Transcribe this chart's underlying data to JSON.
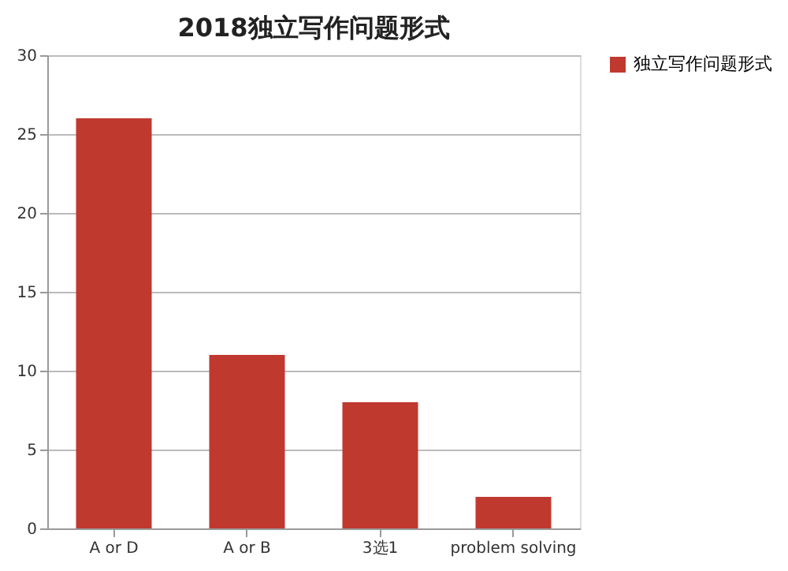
{
  "chart_data": {
    "type": "bar",
    "title": "2018独立写作问题形式",
    "categories": [
      "A or D",
      "A or B",
      "3选1",
      "problem solving"
    ],
    "series": [
      {
        "name": "独立写作问题形式",
        "color": "#c0392f",
        "values": [
          26,
          11,
          8,
          2
        ]
      }
    ],
    "ylim": [
      0,
      30
    ],
    "yticks": [
      0,
      5,
      10,
      15,
      20,
      25,
      30
    ],
    "grid": "y",
    "legend": "right"
  }
}
